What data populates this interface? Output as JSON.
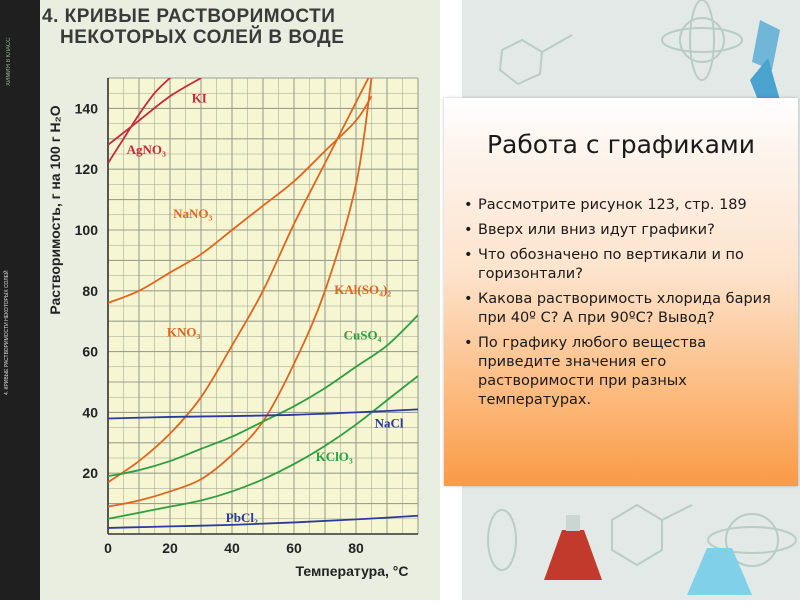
{
  "title": {
    "line1": "4. КРИВЫЕ РАСТВОРИМОСТИ",
    "line2": "НЕКОТОРЫХ СОЛЕЙ В ВОДЕ"
  },
  "side_strip": {
    "top_text": "ХИМИЯ 8 КЛАСС",
    "mid_text": "4. КРИВЫЕ РАСТВОРИМОСТИ НЕКОТОРЫХ СОЛЕЙ"
  },
  "panel": {
    "title": "Работа с графиками",
    "items": [
      "Рассмотрите рисунок 123, стр. 189",
      "Вверх или вниз идут графики?",
      "Что обозначено по вертикали и по горизонтали?",
      "Какова растворимость хлорида бария при 40º С?  А при 90ºС?  Вывод?",
      "По графику любого вещества приведите значения его растворимости при разных температурах."
    ]
  },
  "colors": {
    "orange": "#e0651e",
    "green": "#2e9e3e",
    "blue": "#2a3aa0",
    "crimson": "#c8283a"
  },
  "chart_data": {
    "type": "line",
    "title": "",
    "xlabel": "Температура, °С",
    "ylabel": "Растворимость, г на 100 г H₂O",
    "xlim": [
      0,
      100
    ],
    "ylim": [
      0,
      150
    ],
    "xticks": [
      0,
      20,
      40,
      60,
      80
    ],
    "yticks": [
      20,
      40,
      60,
      80,
      100,
      120,
      140
    ],
    "grid": true,
    "series": [
      {
        "name": "KI",
        "color": "#c8283a",
        "x": [
          0,
          10,
          20,
          30
        ],
        "y": [
          128,
          136,
          144,
          150
        ]
      },
      {
        "name": "AgNO₃",
        "color": "#c8283a",
        "x": [
          0,
          5,
          10,
          15,
          20,
          25
        ],
        "y": [
          122,
          130,
          138,
          145,
          150,
          154
        ]
      },
      {
        "name": "NaNO₃",
        "color": "#e0651e",
        "x": [
          0,
          10,
          20,
          30,
          40,
          50,
          60,
          70,
          80,
          85
        ],
        "y": [
          76,
          80,
          86,
          92,
          100,
          108,
          116,
          126,
          136,
          144
        ]
      },
      {
        "name": "KNO₃",
        "color": "#e0651e",
        "x": [
          0,
          10,
          20,
          30,
          40,
          50,
          60,
          70,
          80,
          85
        ],
        "y": [
          17,
          24,
          33,
          45,
          62,
          80,
          102,
          122,
          142,
          152
        ]
      },
      {
        "name": "KAl(SO₄)₂",
        "color": "#e0651e",
        "x": [
          0,
          10,
          20,
          30,
          40,
          50,
          60,
          70,
          80,
          85
        ],
        "y": [
          9,
          11,
          14,
          18,
          26,
          37,
          56,
          80,
          115,
          150
        ]
      },
      {
        "name": "CuSO₄",
        "color": "#2e9e3e",
        "x": [
          0,
          10,
          20,
          30,
          40,
          50,
          60,
          70,
          80,
          90,
          100
        ],
        "y": [
          19,
          21,
          24,
          28,
          32,
          37,
          42,
          48,
          55,
          62,
          72
        ]
      },
      {
        "name": "KClO₃",
        "color": "#2e9e3e",
        "x": [
          0,
          10,
          20,
          30,
          40,
          50,
          60,
          70,
          80,
          90,
          100
        ],
        "y": [
          5,
          7,
          9,
          11,
          14,
          18,
          23,
          29,
          36,
          44,
          52
        ]
      },
      {
        "name": "NaCl",
        "color": "#2a3aa0",
        "x": [
          0,
          20,
          40,
          60,
          80,
          100
        ],
        "y": [
          38,
          38.5,
          38.8,
          39.2,
          40,
          41
        ]
      },
      {
        "name": "PbCl₂",
        "color": "#2a3aa0",
        "x": [
          0,
          20,
          40,
          60,
          80,
          100
        ],
        "y": [
          2,
          2.5,
          3,
          3.8,
          4.8,
          6
        ]
      }
    ],
    "labels": [
      {
        "text": "KI",
        "x": 27,
        "y": 142
      },
      {
        "text": "AgNO₃",
        "x": 6,
        "y": 125
      },
      {
        "text": "NaNO₃",
        "x": 21,
        "y": 104
      },
      {
        "text": "KNO₃",
        "x": 19,
        "y": 65
      },
      {
        "text": "KAl(SO₄)₂",
        "x": 73,
        "y": 79
      },
      {
        "text": "CuSO₄",
        "x": 76,
        "y": 64
      },
      {
        "text": "NaCl",
        "x": 86,
        "y": 35
      },
      {
        "text": "KClO₃",
        "x": 67,
        "y": 24
      },
      {
        "text": "PbCl₂",
        "x": 38,
        "y": 4
      }
    ]
  }
}
